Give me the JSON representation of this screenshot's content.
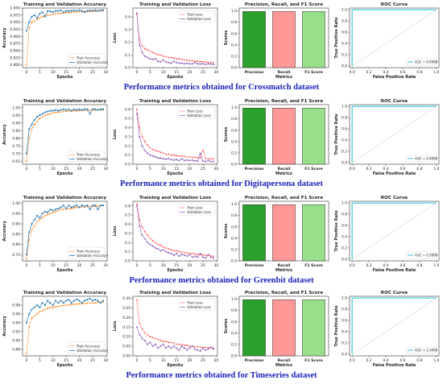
{
  "rows": [
    {
      "caption": "Performance metrics obtained for Crossmatch dataset",
      "accuracy": {
        "title": "Training and Validation Accuracy",
        "xlabel": "Epochs",
        "ylabel": "Accuracy",
        "ylim": [
          0.79,
          1.0
        ],
        "yticks": [
          "0.800",
          "0.825",
          "0.850",
          "0.875",
          "0.900",
          "0.925",
          "0.950",
          "0.975",
          "1.000"
        ],
        "ytickvals": [
          0.8,
          0.825,
          0.85,
          0.875,
          0.9,
          0.925,
          0.95,
          0.975,
          1.0
        ],
        "legend": [
          "Train Accuracy",
          "Validation Accuracy"
        ],
        "train": [
          0.8,
          0.93,
          0.95,
          0.955,
          0.96,
          0.965,
          0.97,
          0.972,
          0.975,
          0.975,
          0.978,
          0.98,
          0.98,
          0.982,
          0.983,
          0.984,
          0.985,
          0.985,
          0.986,
          0.986,
          0.987,
          0.987,
          0.988,
          0.988,
          0.988,
          0.989,
          0.989,
          0.989,
          0.99,
          0.99
        ],
        "val": [
          0.92,
          0.95,
          0.97,
          0.975,
          0.965,
          0.98,
          0.985,
          0.97,
          0.99,
          0.988,
          0.985,
          0.99,
          0.99,
          0.992,
          0.985,
          0.99,
          0.99,
          0.99,
          0.992,
          0.99,
          0.993,
          0.99,
          0.985,
          0.99,
          0.992,
          0.99,
          0.993,
          0.99,
          0.992,
          0.993
        ]
      },
      "loss": {
        "title": "Training and Validation Loss",
        "xlabel": "Epochs",
        "ylabel": "Loss",
        "ylim": [
          0,
          0.47
        ],
        "yticks": [
          "0.0",
          "0.1",
          "0.2",
          "0.3",
          "0.4"
        ],
        "ytickvals": [
          0,
          0.1,
          0.2,
          0.3,
          0.4
        ],
        "legend": [
          "Train Loss",
          "Validation Loss"
        ],
        "train": [
          0.42,
          0.22,
          0.17,
          0.15,
          0.14,
          0.13,
          0.12,
          0.11,
          0.1,
          0.1,
          0.09,
          0.085,
          0.08,
          0.08,
          0.075,
          0.07,
          0.07,
          0.065,
          0.06,
          0.06,
          0.055,
          0.055,
          0.05,
          0.05,
          0.048,
          0.045,
          0.045,
          0.04,
          0.04,
          0.04
        ],
        "val": [
          0.43,
          0.18,
          0.12,
          0.09,
          0.08,
          0.07,
          0.065,
          0.07,
          0.05,
          0.045,
          0.06,
          0.045,
          0.04,
          0.035,
          0.05,
          0.04,
          0.035,
          0.035,
          0.03,
          0.035,
          0.03,
          0.03,
          0.04,
          0.03,
          0.028,
          0.03,
          0.025,
          0.03,
          0.028,
          0.025
        ]
      },
      "bars": {
        "title": "Precision, Recall, and F1 Score",
        "xlabel": "Metrics",
        "ylabel": "Scores",
        "categories": [
          "Precision",
          "Recall",
          "F1 Score"
        ],
        "values": [
          0.99,
          0.99,
          0.99
        ]
      },
      "roc": {
        "title": "ROC Curve",
        "xlabel": "False Positive Rate",
        "ylabel": "True Positive Rate",
        "auc": "AUC = 0.9998"
      }
    },
    {
      "caption": "Performance metrics obtained for Digitapersona dataset",
      "accuracy": {
        "title": "Training and Validation Accuracy",
        "xlabel": "Epochs",
        "ylabel": "Accuracy",
        "ylim": [
          0.63,
          1.02
        ],
        "yticks": [
          "0.65",
          "0.70",
          "0.75",
          "0.80",
          "0.85",
          "0.90",
          "0.95",
          "1.00"
        ],
        "ytickvals": [
          0.65,
          0.7,
          0.75,
          0.8,
          0.85,
          0.9,
          0.95,
          1.0
        ],
        "legend": [
          "Train Accuracy",
          "Validation Accuracy"
        ],
        "train": [
          0.65,
          0.8,
          0.86,
          0.89,
          0.91,
          0.93,
          0.94,
          0.95,
          0.955,
          0.96,
          0.965,
          0.97,
          0.97,
          0.972,
          0.975,
          0.975,
          0.977,
          0.978,
          0.98,
          0.98,
          0.98,
          0.982,
          0.983,
          0.983,
          0.984,
          0.985,
          0.985,
          0.986,
          0.986,
          0.987
        ],
        "val": [
          0.7,
          0.86,
          0.89,
          0.92,
          0.94,
          0.95,
          0.96,
          0.97,
          0.975,
          0.98,
          0.98,
          0.985,
          0.98,
          0.985,
          0.99,
          0.985,
          0.99,
          0.98,
          0.99,
          0.985,
          0.99,
          0.985,
          0.99,
          0.99,
          0.96,
          0.99,
          0.99,
          0.985,
          0.99,
          0.99
        ]
      },
      "loss": {
        "title": "Training and Validation Loss",
        "xlabel": "Epochs",
        "ylabel": "Loss",
        "ylim": [
          0,
          0.65
        ],
        "yticks": [
          "0.0",
          "0.1",
          "0.2",
          "0.3",
          "0.4",
          "0.5",
          "0.6"
        ],
        "ytickvals": [
          0,
          0.1,
          0.2,
          0.3,
          0.4,
          0.5,
          0.6
        ],
        "legend": [
          "Train Loss",
          "Validation Loss"
        ],
        "train": [
          0.6,
          0.4,
          0.3,
          0.25,
          0.21,
          0.18,
          0.16,
          0.15,
          0.14,
          0.13,
          0.12,
          0.11,
          0.11,
          0.1,
          0.1,
          0.095,
          0.09,
          0.09,
          0.085,
          0.08,
          0.08,
          0.075,
          0.075,
          0.07,
          0.07,
          0.15,
          0.065,
          0.06,
          0.06,
          0.06
        ],
        "val": [
          0.55,
          0.3,
          0.2,
          0.15,
          0.12,
          0.1,
          0.09,
          0.08,
          0.07,
          0.065,
          0.06,
          0.055,
          0.06,
          0.05,
          0.045,
          0.05,
          0.04,
          0.06,
          0.04,
          0.045,
          0.04,
          0.045,
          0.035,
          0.035,
          0.12,
          0.035,
          0.03,
          0.04,
          0.03,
          0.03
        ]
      },
      "bars": {
        "title": "Precision, Recall, and F1 Score",
        "xlabel": "Metrics",
        "ylabel": "Scores",
        "categories": [
          "Precision",
          "Recall",
          "F1 Score"
        ],
        "values": [
          0.99,
          0.99,
          0.99
        ]
      },
      "roc": {
        "title": "ROC Curve",
        "xlabel": "False Positive Rate",
        "ylabel": "True Positive Rate",
        "auc": "AUC = 0.9996"
      }
    },
    {
      "caption": "Performance metrics obtained for Greenbit dataset",
      "accuracy": {
        "title": "Training and Validation Accuracy",
        "xlabel": "Epochs",
        "ylabel": "Accuracy",
        "ylim": [
          0.72,
          1.01
        ],
        "yticks": [
          "0.75",
          "0.80",
          "0.85",
          "0.90",
          "0.95",
          "1.00"
        ],
        "ytickvals": [
          0.75,
          0.8,
          0.85,
          0.9,
          0.95,
          1.0
        ],
        "legend": [
          "Train Accuracy",
          "Validation Accuracy"
        ],
        "train": [
          0.73,
          0.82,
          0.87,
          0.89,
          0.91,
          0.92,
          0.93,
          0.94,
          0.945,
          0.95,
          0.955,
          0.96,
          0.965,
          0.97,
          0.97,
          0.972,
          0.975,
          0.975,
          0.978,
          0.98,
          0.98,
          0.982,
          0.982,
          0.984,
          0.985,
          0.985,
          0.986,
          0.986,
          0.987,
          0.99
        ],
        "val": [
          0.75,
          0.86,
          0.9,
          0.92,
          0.94,
          0.93,
          0.95,
          0.96,
          0.955,
          0.97,
          0.965,
          0.97,
          0.975,
          0.98,
          0.99,
          0.975,
          0.99,
          0.98,
          0.985,
          0.99,
          0.98,
          0.99,
          0.985,
          0.99,
          0.97,
          0.99,
          0.99,
          0.97,
          0.99,
          0.99
        ]
      },
      "loss": {
        "title": "Training and Validation Loss",
        "xlabel": "Epochs",
        "ylabel": "Loss",
        "ylim": [
          0,
          0.65
        ],
        "yticks": [
          "0.0",
          "0.1",
          "0.2",
          "0.3",
          "0.4",
          "0.5",
          "0.6"
        ],
        "ytickvals": [
          0,
          0.1,
          0.2,
          0.3,
          0.4,
          0.5,
          0.6
        ],
        "legend": [
          "Train Loss",
          "Validation Loss"
        ],
        "train": [
          0.62,
          0.45,
          0.37,
          0.32,
          0.28,
          0.25,
          0.22,
          0.2,
          0.18,
          0.17,
          0.15,
          0.14,
          0.13,
          0.12,
          0.11,
          0.11,
          0.1,
          0.095,
          0.09,
          0.085,
          0.08,
          0.08,
          0.075,
          0.07,
          0.07,
          0.065,
          0.06,
          0.06,
          0.055,
          0.05
        ],
        "val": [
          0.6,
          0.38,
          0.28,
          0.24,
          0.2,
          0.18,
          0.16,
          0.14,
          0.13,
          0.11,
          0.12,
          0.1,
          0.09,
          0.08,
          0.06,
          0.08,
          0.05,
          0.07,
          0.06,
          0.05,
          0.07,
          0.04,
          0.05,
          0.04,
          0.08,
          0.04,
          0.03,
          0.07,
          0.04,
          0.03
        ]
      },
      "bars": {
        "title": "Precision, Recall, and F1 Score",
        "xlabel": "Metrics",
        "ylabel": "Scores",
        "categories": [
          "Precision",
          "Recall",
          "F1 Score"
        ],
        "values": [
          0.99,
          0.99,
          0.99
        ]
      },
      "roc": {
        "title": "ROC Curve",
        "xlabel": "False Positive Rate",
        "ylabel": "True Positive Rate",
        "auc": "AUC = 0.9999"
      }
    },
    {
      "caption": "Performance metrics obtained for Timeseries dataset",
      "accuracy": {
        "title": "Training and Validation Accuracy",
        "xlabel": "Epochs",
        "ylabel": "Accuracy",
        "ylim": [
          0.865,
          1.0
        ],
        "yticks": [
          "0.88",
          "0.90",
          "0.92",
          "0.94",
          "0.96",
          "0.98"
        ],
        "ytickvals": [
          0.88,
          0.9,
          0.92,
          0.94,
          0.96,
          0.98
        ],
        "legend": [
          "Train Accuracy",
          "Validation Accuracy"
        ],
        "train": [
          0.87,
          0.93,
          0.95,
          0.955,
          0.96,
          0.965,
          0.967,
          0.97,
          0.972,
          0.974,
          0.975,
          0.976,
          0.977,
          0.978,
          0.979,
          0.98,
          0.98,
          0.981,
          0.982,
          0.982,
          0.983,
          0.983,
          0.984,
          0.984,
          0.985,
          0.985,
          0.985,
          0.986,
          0.986,
          0.987
        ],
        "val": [
          0.94,
          0.96,
          0.97,
          0.975,
          0.98,
          0.975,
          0.985,
          0.98,
          0.99,
          0.985,
          0.98,
          0.99,
          0.985,
          0.99,
          0.985,
          0.99,
          0.992,
          0.985,
          0.99,
          0.993,
          0.99,
          0.985,
          0.99,
          0.992,
          0.995,
          0.99,
          0.992,
          0.99,
          0.985,
          0.99
        ]
      },
      "loss": {
        "title": "Training and Validation Loss",
        "xlabel": "Epochs",
        "ylabel": "Loss",
        "ylim": [
          0,
          0.31
        ],
        "yticks": [
          "0.00",
          "0.05",
          "0.10",
          "0.15",
          "0.20",
          "0.25",
          "0.30"
        ],
        "ytickvals": [
          0,
          0.05,
          0.1,
          0.15,
          0.2,
          0.25,
          0.3
        ],
        "legend": [
          "Train Loss",
          "Validation Loss"
        ],
        "train": [
          0.29,
          0.17,
          0.14,
          0.12,
          0.11,
          0.1,
          0.095,
          0.09,
          0.085,
          0.08,
          0.075,
          0.075,
          0.07,
          0.07,
          0.065,
          0.06,
          0.06,
          0.058,
          0.055,
          0.055,
          0.05,
          0.05,
          0.048,
          0.047,
          0.046,
          0.045,
          0.044,
          0.043,
          0.042,
          0.04
        ],
        "val": [
          0.15,
          0.11,
          0.09,
          0.08,
          0.06,
          0.07,
          0.05,
          0.06,
          0.04,
          0.05,
          0.06,
          0.04,
          0.05,
          0.04,
          0.05,
          0.04,
          0.03,
          0.05,
          0.04,
          0.03,
          0.04,
          0.05,
          0.035,
          0.03,
          0.025,
          0.04,
          0.03,
          0.035,
          0.045,
          0.035
        ]
      },
      "bars": {
        "title": "Precision, Recall, and F1 Score",
        "xlabel": "Metrics",
        "ylabel": "Scores",
        "categories": [
          "Precision",
          "Recall",
          "F1 Score"
        ],
        "values": [
          0.99,
          0.99,
          0.99
        ]
      },
      "roc": {
        "title": "ROC Curve",
        "xlabel": "False Positive Rate",
        "ylabel": "True Positive Rate",
        "auc": "AUC = 1.0000"
      }
    }
  ],
  "shared": {
    "epoch_ticks": [
      0,
      5,
      10,
      15,
      20,
      25,
      30
    ],
    "bar_ticks": [
      0.0,
      0.2,
      0.4,
      0.6,
      0.8,
      1.0
    ],
    "roc_ticks": [
      0.0,
      0.2,
      0.4,
      0.6,
      0.8,
      1.0
    ],
    "colors": {
      "train": "#ff7f0e",
      "val": "#1f77b4",
      "train_loss": "#ff4f4f",
      "val_loss": "#9467bd",
      "bar_precision": "#2ca02c",
      "bar_recall": "#ff9896",
      "bar_f1": "#98df8a",
      "roc": "#17becf",
      "caption": "#1a24b8"
    }
  },
  "chart_data": [
    {
      "type": "line",
      "title": "Training and Validation Accuracy",
      "dataset": "Crossmatch",
      "series": [
        {
          "name": "Train Accuracy"
        },
        {
          "name": "Validation Accuracy"
        }
      ]
    },
    {
      "type": "line",
      "title": "Training and Validation Loss",
      "dataset": "Crossmatch",
      "series": [
        {
          "name": "Train Loss"
        },
        {
          "name": "Validation Loss"
        }
      ]
    },
    {
      "type": "bar",
      "title": "Precision, Recall, and F1 Score",
      "categories": [
        "Precision",
        "Recall",
        "F1 Score"
      ],
      "values": [
        0.99,
        0.99,
        0.99
      ]
    },
    {
      "type": "line",
      "title": "ROC Curve",
      "annotation": "AUC = 0.9998"
    }
  ]
}
